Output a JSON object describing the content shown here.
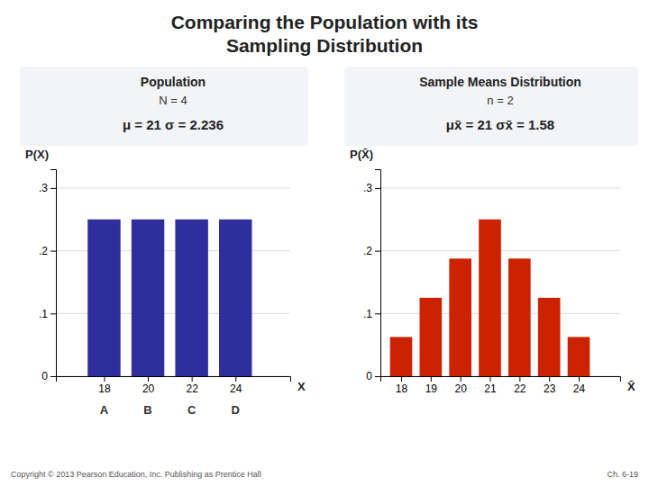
{
  "title": [
    "Comparing the Population with its",
    "Sampling Distribution"
  ],
  "annotations": [
    "Copyright © 2013 Pearson Education, Inc. Publishing as Prentice Hall",
    "Ch. 6-19"
  ],
  "chart_data": [
    {
      "type": "bar",
      "title": "Population",
      "subtitle": "N = 4",
      "annotations": [
        "μ = 21    σ = 2.236"
      ],
      "x": [
        18,
        20,
        22,
        24
      ],
      "categories": [
        "A",
        "B",
        "C",
        "D"
      ],
      "values": [
        0.25,
        0.25,
        0.25,
        0.25
      ],
      "color": "#2e2e9c",
      "x_label": "X",
      "y_label": "P(X)",
      "xlim": [
        15.8,
        26.5
      ],
      "xticks": [
        18,
        20,
        22,
        24
      ],
      "ylim": [
        0,
        0.33
      ],
      "yticks": [
        0,
        {
          "value": 0.1,
          "label": ".1"
        },
        {
          "value": 0.2,
          "label": ".2"
        },
        {
          "value": 0.3,
          "label": ".3"
        }
      ],
      "grid": true
    },
    {
      "type": "bar",
      "title": "Sample Means Distribution",
      "subtitle": "n = 2",
      "annotations": [
        "μx̄ = 21    σx̄ = 1.58"
      ],
      "x": [
        18,
        19,
        20,
        21,
        22,
        23,
        24
      ],
      "values": [
        0.0625,
        0.125,
        0.1875,
        0.25,
        0.1875,
        0.125,
        0.0625
      ],
      "color": "#cc2200",
      "x_label": "X̄",
      "y_label": "P(X̄)",
      "xlim": [
        17.3,
        25.4
      ],
      "xticks": [
        18,
        19,
        20,
        21,
        22,
        23,
        24
      ],
      "ylim": [
        0,
        0.33
      ],
      "yticks": [
        0,
        {
          "value": 0.1,
          "label": ".1"
        },
        {
          "value": 0.2,
          "label": ".2"
        },
        {
          "value": 0.3,
          "label": ".3"
        }
      ],
      "grid": true
    }
  ]
}
